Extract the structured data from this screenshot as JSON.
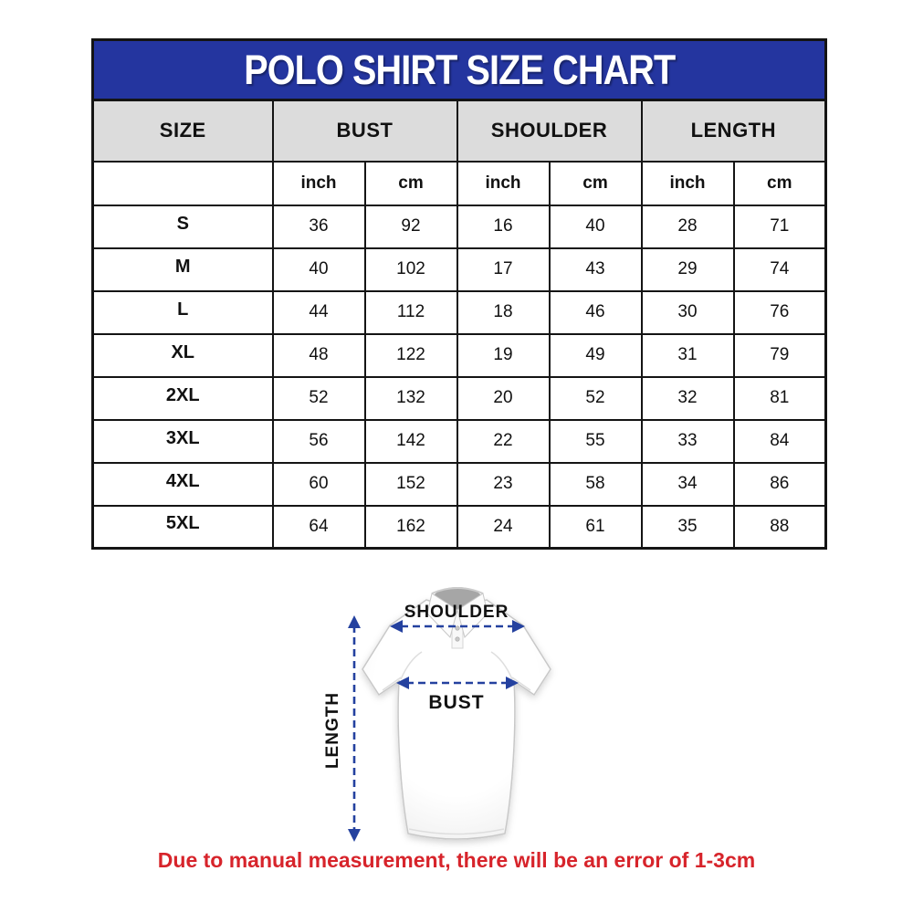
{
  "title": "POLO SHIRT SIZE CHART",
  "table": {
    "size_column_header": "SIZE",
    "measure_columns": [
      "BUST",
      "SHOULDER",
      "LENGTH"
    ],
    "unit_labels": [
      "inch",
      "cm"
    ],
    "rows": [
      {
        "size": "S",
        "bust_inch": "36",
        "bust_cm": "92",
        "shoulder_inch": "16",
        "shoulder_cm": "40",
        "length_inch": "28",
        "length_cm": "71"
      },
      {
        "size": "M",
        "bust_inch": "40",
        "bust_cm": "102",
        "shoulder_inch": "17",
        "shoulder_cm": "43",
        "length_inch": "29",
        "length_cm": "74"
      },
      {
        "size": "L",
        "bust_inch": "44",
        "bust_cm": "112",
        "shoulder_inch": "18",
        "shoulder_cm": "46",
        "length_inch": "30",
        "length_cm": "76"
      },
      {
        "size": "XL",
        "bust_inch": "48",
        "bust_cm": "122",
        "shoulder_inch": "19",
        "shoulder_cm": "49",
        "length_inch": "31",
        "length_cm": "79"
      },
      {
        "size": "2XL",
        "bust_inch": "52",
        "bust_cm": "132",
        "shoulder_inch": "20",
        "shoulder_cm": "52",
        "length_inch": "32",
        "length_cm": "81"
      },
      {
        "size": "3XL",
        "bust_inch": "56",
        "bust_cm": "142",
        "shoulder_inch": "22",
        "shoulder_cm": "55",
        "length_inch": "33",
        "length_cm": "84"
      },
      {
        "size": "4XL",
        "bust_inch": "60",
        "bust_cm": "152",
        "shoulder_inch": "23",
        "shoulder_cm": "58",
        "length_inch": "34",
        "length_cm": "86"
      },
      {
        "size": "5XL",
        "bust_inch": "64",
        "bust_cm": "162",
        "shoulder_inch": "24",
        "shoulder_cm": "61",
        "length_inch": "35",
        "length_cm": "88"
      }
    ]
  },
  "diagram": {
    "shoulder_label": "SHOULDER",
    "bust_label": "BUST",
    "length_label": "LENGTH"
  },
  "disclaimer": "Due to manual measurement, there will be an error of 1-3cm",
  "colors": {
    "header_blue": "#24359f",
    "header_gray": "#dcdcdc",
    "arrow_blue": "#24419f",
    "disclaimer_red": "#d7242b"
  }
}
